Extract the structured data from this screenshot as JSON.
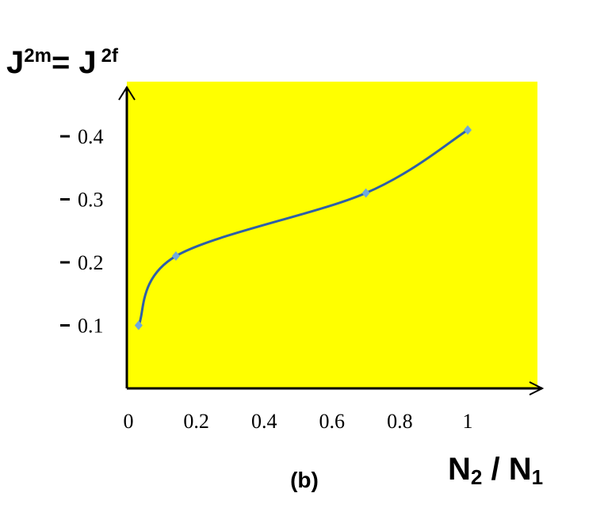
{
  "chart_data": {
    "type": "line",
    "y_label": [
      "J",
      "2m",
      "= J",
      "2f"
    ],
    "x_label": [
      "N",
      "2",
      " / N",
      "1"
    ],
    "subtitle": "(b)",
    "x": [
      0.03,
      0.14,
      0.7,
      1
    ],
    "series": [
      {
        "color": "#2e5fa8",
        "values": [
          0.1,
          0.21,
          0.31,
          0.41
        ]
      }
    ],
    "xlim": [
      0,
      1.2
    ],
    "ylim": [
      0,
      0.47
    ],
    "xticks": [
      0,
      0.2,
      0.4,
      0.6,
      0.8,
      1
    ],
    "yticks": [
      0.1,
      0.2,
      0.3,
      0.4
    ],
    "background": "#ffff00"
  }
}
